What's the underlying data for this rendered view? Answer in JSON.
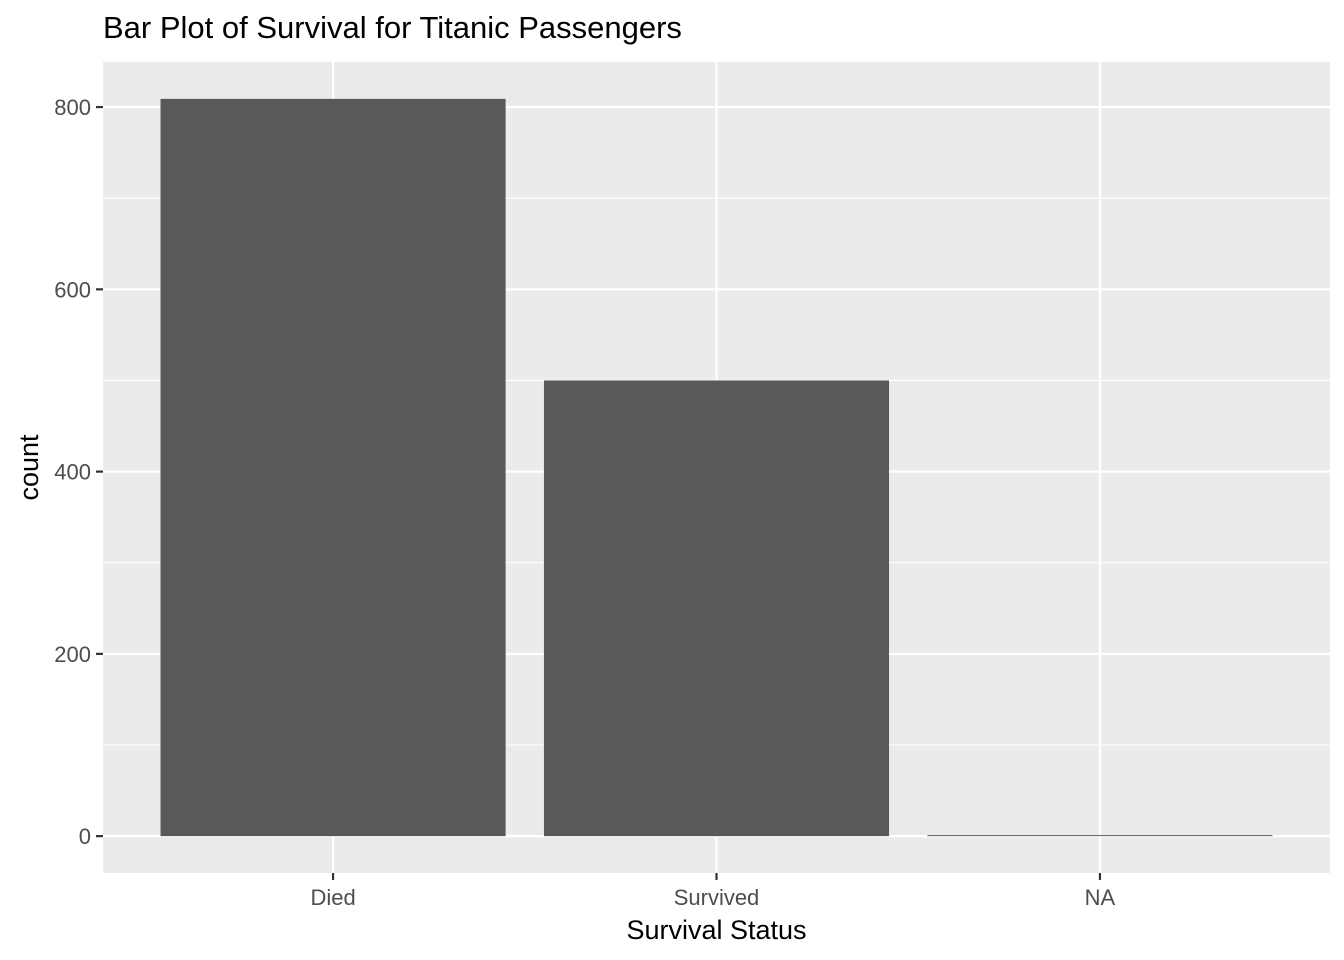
{
  "chart_data": {
    "type": "bar",
    "title": "Bar Plot of Survival for Titanic Passengers",
    "xlabel": "Survival Status",
    "ylabel": "count",
    "categories": [
      "Died",
      "Survived",
      "NA"
    ],
    "values": [
      809,
      500,
      1
    ],
    "ylim": [
      -40.45,
      849.45
    ],
    "yticks": [
      0,
      200,
      400,
      600,
      800
    ],
    "grid": true,
    "colors": {
      "panel": "#ebebeb",
      "grid": "#ffffff",
      "bar": "#595959",
      "tick_text": "#4d4d4d",
      "tick_mark": "#333333"
    }
  }
}
